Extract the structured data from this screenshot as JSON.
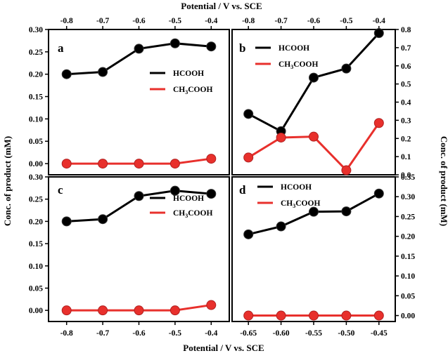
{
  "figure": {
    "top_xlabel": "Potential / V vs. SCE",
    "bottom_xlabel": "Potential / V vs. SCE",
    "left_ylabel": "Conc. of product (mM)",
    "right_ylabel": "Conc. of product (mM)"
  },
  "colors": {
    "hcooh": "#000000",
    "ch3cooh": "#e8302c"
  },
  "chart_data": [
    {
      "panel": "a",
      "type": "line",
      "xlabel": "Potential / V vs. SCE",
      "ylabel": "Conc. of product (mM)",
      "x": [
        -0.8,
        -0.7,
        -0.6,
        -0.5,
        -0.4
      ],
      "xticks": [
        "-0.8",
        "-0.7",
        "-0.6",
        "-0.5",
        "-0.4"
      ],
      "xlim": [
        -0.85,
        -0.35
      ],
      "ylim": [
        -0.025,
        0.3
      ],
      "yticks": [
        "0.00",
        "0.05",
        "0.10",
        "0.15",
        "0.20",
        "0.25",
        "0.30"
      ],
      "series": [
        {
          "name": "HCOOH",
          "values": [
            0.2,
            0.205,
            0.257,
            0.269,
            0.262
          ]
        },
        {
          "name": "CH3COOH",
          "values": [
            0.0,
            0.0,
            0.0,
            0.0,
            0.011
          ]
        }
      ],
      "legend": [
        {
          "label": "HCOOH",
          "main": "HCOOH",
          "sub": ""
        },
        {
          "label": "CH3COOH",
          "main": "CH",
          "sub": "3",
          "tail": "COOH"
        }
      ]
    },
    {
      "panel": "b",
      "type": "line",
      "x": [
        -0.8,
        -0.7,
        -0.6,
        -0.5,
        -0.4
      ],
      "xticks": [
        "-0.8",
        "-0.7",
        "-0.6",
        "-0.5",
        "-0.4"
      ],
      "xlim": [
        -0.85,
        -0.35
      ],
      "ylim": [
        0,
        0.8
      ],
      "yticks": [
        "0.0",
        "0.1",
        "0.2",
        "0.3",
        "0.4",
        "0.5",
        "0.6",
        "0.7",
        "0.8"
      ],
      "series": [
        {
          "name": "HCOOH",
          "values": [
            0.335,
            0.24,
            0.535,
            0.585,
            0.78
          ]
        },
        {
          "name": "CH3COOH",
          "values": [
            0.095,
            0.205,
            0.21,
            0.025,
            0.285
          ]
        }
      ],
      "legend": [
        {
          "label": "HCOOH",
          "main": "HCOOH",
          "sub": ""
        },
        {
          "label": "CH3COOH",
          "main": "CH",
          "sub": "3",
          "tail": "COOH"
        }
      ]
    },
    {
      "panel": "c",
      "type": "line",
      "x": [
        -0.8,
        -0.7,
        -0.6,
        -0.5,
        -0.4
      ],
      "xticks": [
        "-0.8",
        "-0.7",
        "-0.6",
        "-0.5",
        "-0.4"
      ],
      "xlim": [
        -0.85,
        -0.35
      ],
      "ylim": [
        -0.025,
        0.3
      ],
      "yticks": [
        "0.00",
        "0.05",
        "0.10",
        "0.15",
        "0.20",
        "0.25",
        "0.30"
      ],
      "series": [
        {
          "name": "HCOOH",
          "values": [
            0.2,
            0.205,
            0.257,
            0.269,
            0.262
          ]
        },
        {
          "name": "CH3COOH",
          "values": [
            0.0,
            0.0,
            0.0,
            0.0,
            0.012
          ]
        }
      ],
      "legend": [
        {
          "label": "HCOOH",
          "main": "HCOOH",
          "sub": ""
        },
        {
          "label": "CH3COOH",
          "main": "CH",
          "sub": "3",
          "tail": "COOH"
        }
      ]
    },
    {
      "panel": "d",
      "type": "line",
      "x": [
        -0.65,
        -0.6,
        -0.55,
        -0.5,
        -0.45
      ],
      "xticks": [
        "-0.65",
        "-0.60",
        "-0.55",
        "-0.50",
        "-0.45"
      ],
      "xlim": [
        -0.675,
        -0.425
      ],
      "ylim": [
        -0.015,
        0.35
      ],
      "yticks": [
        "0.00",
        "0.05",
        "0.10",
        "0.15",
        "0.20",
        "0.25",
        "0.30",
        "0.35"
      ],
      "series": [
        {
          "name": "HCOOH",
          "values": [
            0.205,
            0.225,
            0.262,
            0.263,
            0.308
          ]
        },
        {
          "name": "CH3COOH",
          "values": [
            0.0,
            0.0,
            0.0,
            0.0,
            0.0
          ]
        }
      ],
      "legend": [
        {
          "label": "HCOOH",
          "main": "HCOOH",
          "sub": ""
        },
        {
          "label": "CH3COOH",
          "main": "CH",
          "sub": "3",
          "tail": "COOH"
        }
      ]
    }
  ]
}
